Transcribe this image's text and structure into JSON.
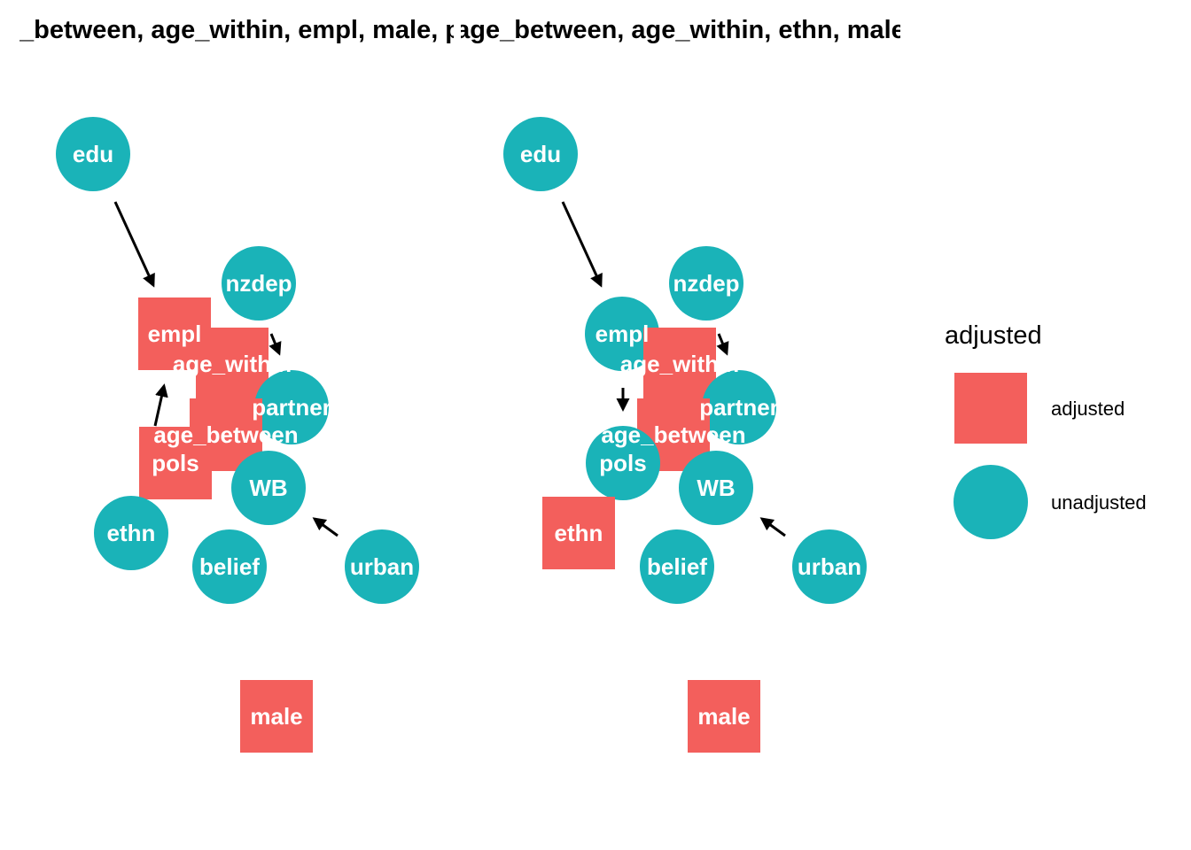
{
  "colors": {
    "adjusted": "#F35F5C",
    "unadjusted": "#1AB3B8"
  },
  "panels": [
    {
      "title": "age_between, age_within, empl, male, pols",
      "nodes": [
        {
          "id": "edu",
          "label": "edu",
          "status": "unadjusted"
        },
        {
          "id": "nzdep",
          "label": "nzdep",
          "status": "unadjusted"
        },
        {
          "id": "empl",
          "label": "empl",
          "status": "adjusted"
        },
        {
          "id": "age_within",
          "label": "age_within",
          "status": "adjusted"
        },
        {
          "id": "partner",
          "label": "partner",
          "status": "unadjusted"
        },
        {
          "id": "age_between",
          "label": "age_between",
          "status": "adjusted"
        },
        {
          "id": "pols",
          "label": "pols",
          "status": "adjusted"
        },
        {
          "id": "WB",
          "label": "WB",
          "status": "unadjusted"
        },
        {
          "id": "ethn",
          "label": "ethn",
          "status": "unadjusted"
        },
        {
          "id": "belief",
          "label": "belief",
          "status": "unadjusted"
        },
        {
          "id": "urban",
          "label": "urban",
          "status": "unadjusted"
        },
        {
          "id": "male",
          "label": "male",
          "status": "adjusted"
        }
      ],
      "edges": [
        {
          "from": "edu",
          "to": "empl"
        },
        {
          "from": "nzdep",
          "to": "age_within"
        },
        {
          "from": "pols",
          "to": "empl"
        },
        {
          "from": "urban",
          "to": "WB"
        }
      ]
    },
    {
      "title": "age_between, age_within, ethn, male",
      "nodes": [
        {
          "id": "edu",
          "label": "edu",
          "status": "unadjusted"
        },
        {
          "id": "nzdep",
          "label": "nzdep",
          "status": "unadjusted"
        },
        {
          "id": "empl",
          "label": "empl",
          "status": "unadjusted"
        },
        {
          "id": "age_within",
          "label": "age_within",
          "status": "adjusted"
        },
        {
          "id": "partner",
          "label": "partner",
          "status": "unadjusted"
        },
        {
          "id": "age_between",
          "label": "age_between",
          "status": "adjusted"
        },
        {
          "id": "pols",
          "label": "pols",
          "status": "unadjusted"
        },
        {
          "id": "WB",
          "label": "WB",
          "status": "unadjusted"
        },
        {
          "id": "ethn",
          "label": "ethn",
          "status": "adjusted"
        },
        {
          "id": "belief",
          "label": "belief",
          "status": "unadjusted"
        },
        {
          "id": "urban",
          "label": "urban",
          "status": "unadjusted"
        },
        {
          "id": "male",
          "label": "male",
          "status": "adjusted"
        }
      ],
      "edges": [
        {
          "from": "edu",
          "to": "empl"
        },
        {
          "from": "nzdep",
          "to": "age_within"
        },
        {
          "from": "empl",
          "to": "pols"
        },
        {
          "from": "urban",
          "to": "WB"
        }
      ]
    }
  ],
  "legend": {
    "title": "adjusted",
    "items": [
      {
        "label": "adjusted",
        "status": "adjusted"
      },
      {
        "label": "unadjusted",
        "status": "unadjusted"
      }
    ]
  }
}
